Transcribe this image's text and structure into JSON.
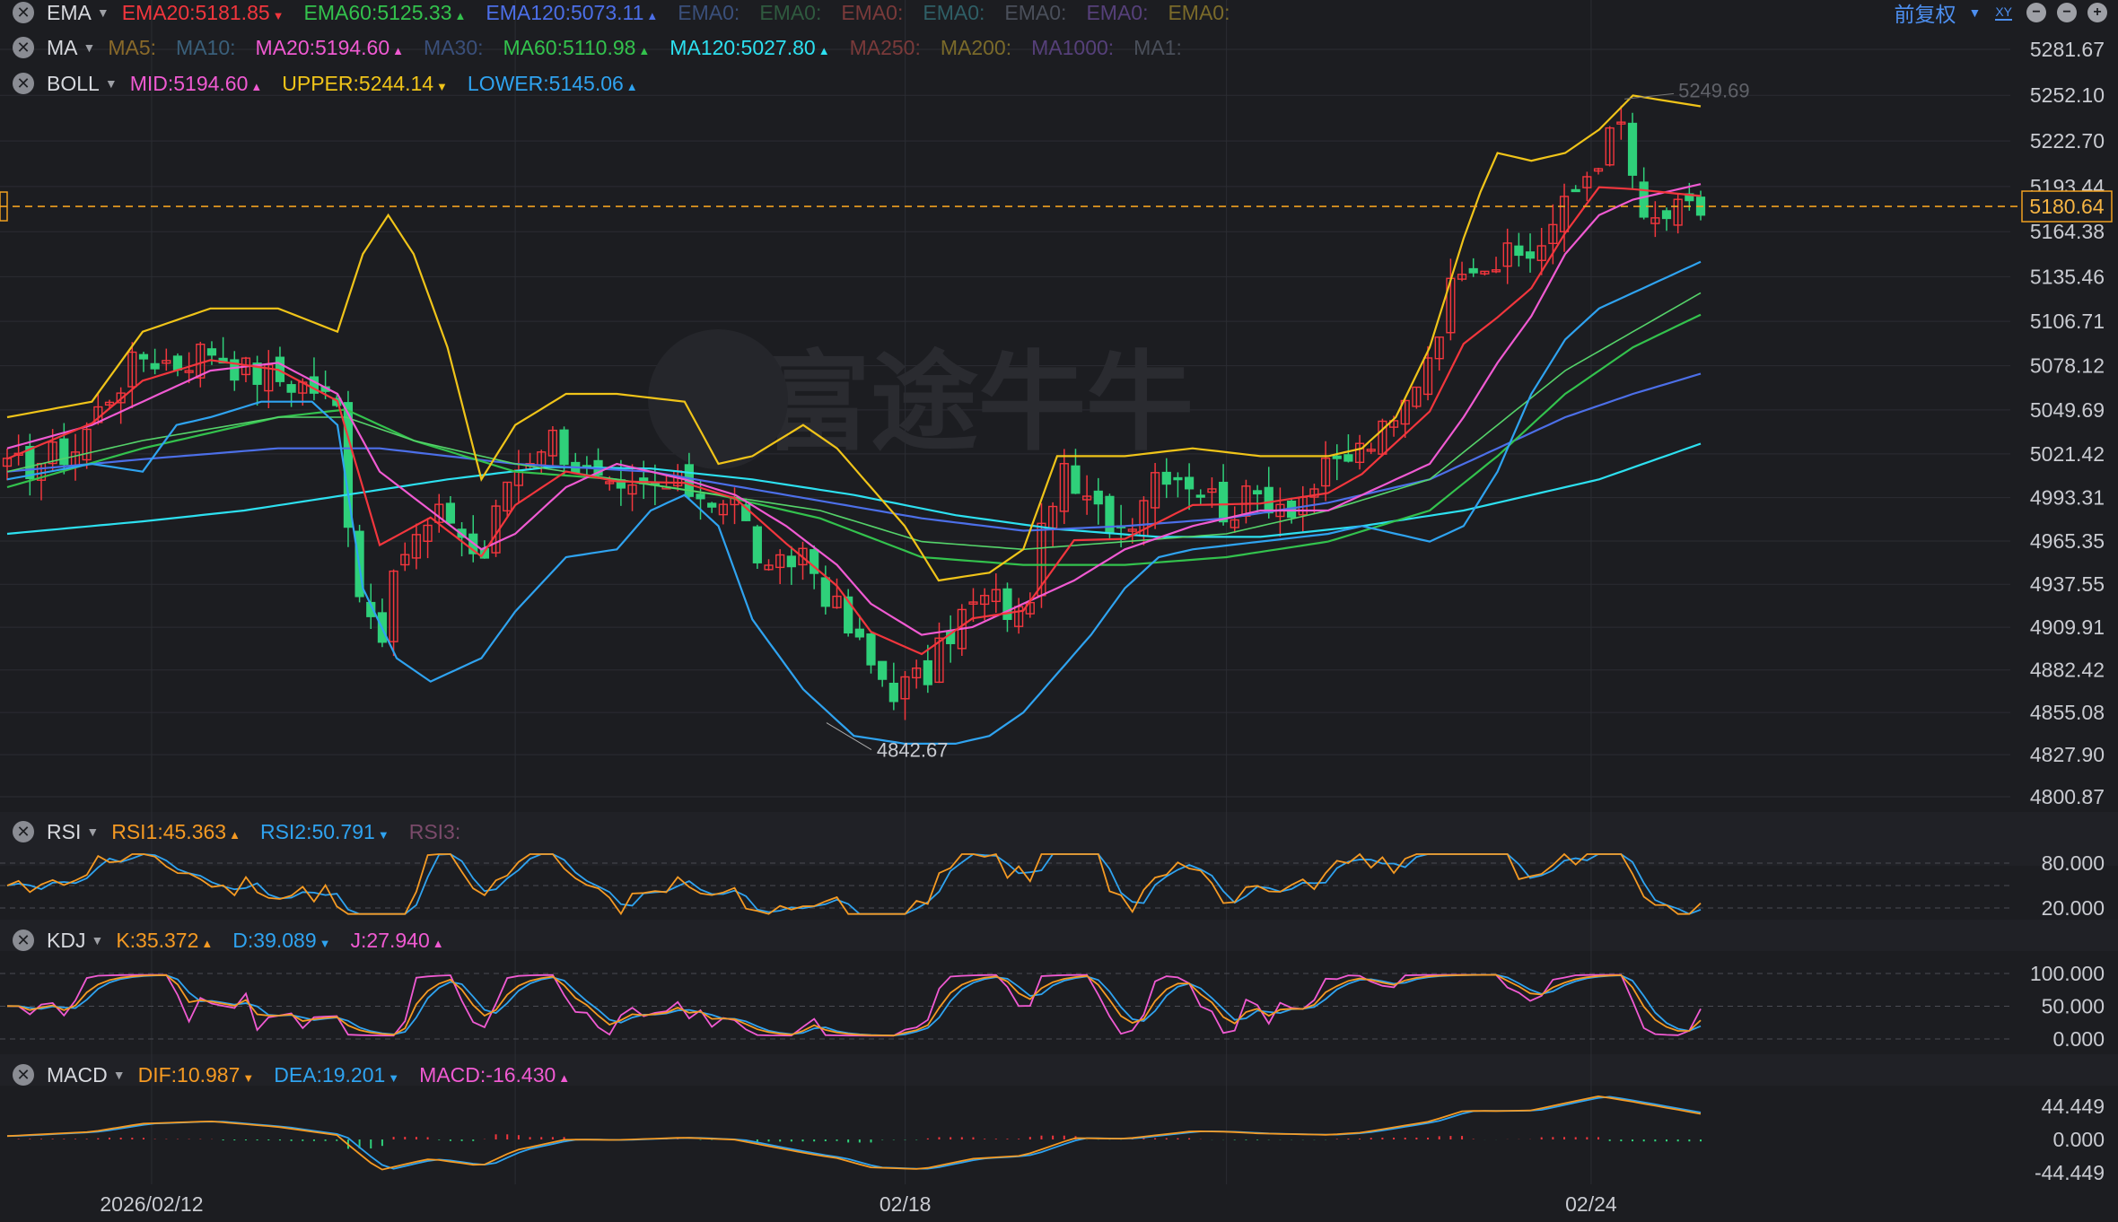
{
  "toolbar": {
    "adjust_label": "前复权",
    "xy_label": "XY"
  },
  "watermark": "富途牛牛",
  "indicators": {
    "ema": {
      "name": "EMA",
      "items": [
        {
          "text": "EMA20:5181.85",
          "color": "#f2363d",
          "arrow": "▼"
        },
        {
          "text": "EMA60:5125.33",
          "color": "#33c24d",
          "arrow": "▲"
        },
        {
          "text": "EMA120:5073.11",
          "color": "#4c6fe8",
          "arrow": "▲"
        },
        {
          "text": "EMA0:",
          "color": "#3a4f7a",
          "arrow": ""
        },
        {
          "text": "EMA0:",
          "color": "#2f5a3f",
          "arrow": ""
        },
        {
          "text": "EMA0:",
          "color": "#7a3a3a",
          "arrow": ""
        },
        {
          "text": "EMA0:",
          "color": "#2f5f66",
          "arrow": ""
        },
        {
          "text": "EMA0:",
          "color": "#4a4f5a",
          "arrow": ""
        },
        {
          "text": "EMA0:",
          "color": "#56407a",
          "arrow": ""
        },
        {
          "text": "EMA0:",
          "color": "#7a6a2a",
          "arrow": ""
        }
      ]
    },
    "ma": {
      "name": "MA",
      "items": [
        {
          "text": "MA5:",
          "color": "#8a6a2a",
          "arrow": ""
        },
        {
          "text": "MA10:",
          "color": "#3a5f7a",
          "arrow": ""
        },
        {
          "text": "MA20:5194.60",
          "color": "#f05ad2",
          "arrow": "▲"
        },
        {
          "text": "MA30:",
          "color": "#3a4f7a",
          "arrow": ""
        },
        {
          "text": "MA60:5110.98",
          "color": "#33c24d",
          "arrow": "▲"
        },
        {
          "text": "MA120:5027.80",
          "color": "#2de0f0",
          "arrow": "▲"
        },
        {
          "text": "MA250:",
          "color": "#7a3a3a",
          "arrow": ""
        },
        {
          "text": "MA200:",
          "color": "#7a6a2a",
          "arrow": ""
        },
        {
          "text": "MA1000:",
          "color": "#56407a",
          "arrow": ""
        },
        {
          "text": "MA1:",
          "color": "#4a4f5a",
          "arrow": ""
        }
      ]
    },
    "boll": {
      "name": "BOLL",
      "items": [
        {
          "text": "MID:5194.60",
          "color": "#f05ad2",
          "arrow": "▲"
        },
        {
          "text": "UPPER:5244.14",
          "color": "#f0c419",
          "arrow": "▼"
        },
        {
          "text": "LOWER:5145.06",
          "color": "#2fa3f0",
          "arrow": "▲"
        }
      ]
    },
    "rsi": {
      "name": "RSI",
      "items": [
        {
          "text": "RSI1:45.363",
          "color": "#f59a23",
          "arrow": "▲"
        },
        {
          "text": "RSI2:50.791",
          "color": "#2fa3f0",
          "arrow": "▼"
        },
        {
          "text": "RSI3:",
          "color": "#7a4a6a",
          "arrow": ""
        }
      ]
    },
    "kdj": {
      "name": "KDJ",
      "items": [
        {
          "text": "K:35.372",
          "color": "#f59a23",
          "arrow": "▲"
        },
        {
          "text": "D:39.089",
          "color": "#2fa3f0",
          "arrow": "▼"
        },
        {
          "text": "J:27.940",
          "color": "#f05ad2",
          "arrow": "▲"
        }
      ]
    },
    "macd": {
      "name": "MACD",
      "items": [
        {
          "text": "DIF:10.987",
          "color": "#f59a23",
          "arrow": "▼"
        },
        {
          "text": "DEA:19.201",
          "color": "#2fa3f0",
          "arrow": "▼"
        },
        {
          "text": "MACD:-16.430",
          "color": "#f05ad2",
          "arrow": "▲"
        }
      ]
    }
  },
  "colors": {
    "up": "#f2363d",
    "down": "#2fd07a",
    "background": "#1c1d21",
    "grid": "#2b2d33",
    "price_line": "#f0a020"
  },
  "chart_data": {
    "type": "candlestick",
    "price_axis_ticks": [
      "5281.67",
      "5252.10",
      "5222.70",
      "5193.44",
      "5164.38",
      "5135.46",
      "5106.71",
      "5078.12",
      "5049.69",
      "5021.42",
      "4993.31",
      "4965.35",
      "4937.55",
      "4909.91",
      "4882.42",
      "4855.08",
      "4827.90",
      "4800.87"
    ],
    "price_ylim": [
      4800.87,
      5281.67
    ],
    "x_labels": [
      {
        "label": "2026/02/12",
        "pos": 0.08
      },
      {
        "label": "02/18",
        "pos": 0.525
      },
      {
        "label": "02/24",
        "pos": 0.93
      }
    ],
    "current_price": "5180.64",
    "high_label": "5249.69",
    "low_label": "4842.67",
    "candles": [],
    "rsi_axis": [
      "80.000",
      "20.000"
    ],
    "kdj_axis": [
      "100.000",
      "50.000",
      "0.000"
    ],
    "macd_axis": [
      "44.449",
      "0.000",
      "-44.449"
    ],
    "anchors": {
      "close": [
        [
          0,
          5010
        ],
        [
          0.04,
          5025
        ],
        [
          0.06,
          5060
        ],
        [
          0.08,
          5085
        ],
        [
          0.1,
          5080
        ],
        [
          0.12,
          5090
        ],
        [
          0.14,
          5075
        ],
        [
          0.16,
          5070
        ],
        [
          0.18,
          5065
        ],
        [
          0.195,
          5050
        ],
        [
          0.205,
          4945
        ],
        [
          0.22,
          4905
        ],
        [
          0.235,
          4960
        ],
        [
          0.26,
          4985
        ],
        [
          0.28,
          4950
        ],
        [
          0.295,
          5005
        ],
        [
          0.32,
          5035
        ],
        [
          0.34,
          5010
        ],
        [
          0.36,
          4990
        ],
        [
          0.38,
          5000
        ],
        [
          0.4,
          5000
        ],
        [
          0.43,
          4990
        ],
        [
          0.45,
          4940
        ],
        [
          0.47,
          4960
        ],
        [
          0.49,
          4920
        ],
        [
          0.51,
          4885
        ],
        [
          0.525,
          4870
        ],
        [
          0.545,
          4880
        ],
        [
          0.56,
          4915
        ],
        [
          0.58,
          4930
        ],
        [
          0.6,
          4915
        ],
        [
          0.62,
          5010
        ],
        [
          0.64,
          4985
        ],
        [
          0.66,
          4975
        ],
        [
          0.68,
          5015
        ],
        [
          0.7,
          5005
        ],
        [
          0.72,
          4985
        ],
        [
          0.74,
          4995
        ],
        [
          0.76,
          4990
        ],
        [
          0.78,
          5010
        ],
        [
          0.8,
          5025
        ],
        [
          0.82,
          5040
        ],
        [
          0.84,
          5090
        ],
        [
          0.86,
          5150
        ],
        [
          0.88,
          5145
        ],
        [
          0.9,
          5150
        ],
        [
          0.92,
          5180
        ],
        [
          0.94,
          5215
        ],
        [
          0.955,
          5235
        ],
        [
          0.965,
          5165
        ],
        [
          0.98,
          5175
        ],
        [
          1.0,
          5178
        ]
      ],
      "upper": [
        [
          0,
          5045
        ],
        [
          0.05,
          5055
        ],
        [
          0.08,
          5100
        ],
        [
          0.12,
          5115
        ],
        [
          0.16,
          5115
        ],
        [
          0.195,
          5100
        ],
        [
          0.21,
          5150
        ],
        [
          0.225,
          5175
        ],
        [
          0.24,
          5150
        ],
        [
          0.26,
          5090
        ],
        [
          0.28,
          5005
        ],
        [
          0.3,
          5040
        ],
        [
          0.33,
          5060
        ],
        [
          0.36,
          5060
        ],
        [
          0.4,
          5055
        ],
        [
          0.42,
          5015
        ],
        [
          0.44,
          5020
        ],
        [
          0.47,
          5040
        ],
        [
          0.49,
          5025
        ],
        [
          0.51,
          5000
        ],
        [
          0.53,
          4975
        ],
        [
          0.55,
          4940
        ],
        [
          0.58,
          4945
        ],
        [
          0.6,
          4960
        ],
        [
          0.62,
          5020
        ],
        [
          0.66,
          5020
        ],
        [
          0.7,
          5025
        ],
        [
          0.74,
          5020
        ],
        [
          0.78,
          5020
        ],
        [
          0.8,
          5025
        ],
        [
          0.82,
          5045
        ],
        [
          0.84,
          5090
        ],
        [
          0.86,
          5160
        ],
        [
          0.87,
          5190
        ],
        [
          0.88,
          5215
        ],
        [
          0.9,
          5210
        ],
        [
          0.92,
          5215
        ],
        [
          0.94,
          5230
        ],
        [
          0.96,
          5252
        ],
        [
          1.0,
          5245
        ]
      ],
      "mid": [
        [
          0,
          5025
        ],
        [
          0.05,
          5040
        ],
        [
          0.08,
          5055
        ],
        [
          0.12,
          5075
        ],
        [
          0.16,
          5080
        ],
        [
          0.195,
          5060
        ],
        [
          0.22,
          5010
        ],
        [
          0.25,
          4985
        ],
        [
          0.28,
          4960
        ],
        [
          0.3,
          4970
        ],
        [
          0.33,
          5000
        ],
        [
          0.36,
          5015
        ],
        [
          0.4,
          5005
        ],
        [
          0.43,
          4995
        ],
        [
          0.46,
          4975
        ],
        [
          0.49,
          4950
        ],
        [
          0.51,
          4925
        ],
        [
          0.54,
          4905
        ],
        [
          0.57,
          4910
        ],
        [
          0.6,
          4925
        ],
        [
          0.63,
          4940
        ],
        [
          0.66,
          4960
        ],
        [
          0.7,
          4975
        ],
        [
          0.74,
          4985
        ],
        [
          0.78,
          4985
        ],
        [
          0.8,
          4995
        ],
        [
          0.84,
          5015
        ],
        [
          0.86,
          5045
        ],
        [
          0.88,
          5080
        ],
        [
          0.9,
          5110
        ],
        [
          0.92,
          5150
        ],
        [
          0.94,
          5175
        ],
        [
          0.96,
          5185
        ],
        [
          1.0,
          5195
        ]
      ],
      "lower": [
        [
          0,
          5005
        ],
        [
          0.05,
          5015
        ],
        [
          0.08,
          5010
        ],
        [
          0.1,
          5040
        ],
        [
          0.12,
          5045
        ],
        [
          0.15,
          5055
        ],
        [
          0.18,
          5055
        ],
        [
          0.195,
          5040
        ],
        [
          0.21,
          4935
        ],
        [
          0.23,
          4890
        ],
        [
          0.25,
          4875
        ],
        [
          0.28,
          4890
        ],
        [
          0.3,
          4920
        ],
        [
          0.33,
          4955
        ],
        [
          0.36,
          4960
        ],
        [
          0.38,
          4985
        ],
        [
          0.4,
          4995
        ],
        [
          0.42,
          4975
        ],
        [
          0.44,
          4915
        ],
        [
          0.47,
          4870
        ],
        [
          0.5,
          4840
        ],
        [
          0.53,
          4835
        ],
        [
          0.56,
          4835
        ],
        [
          0.58,
          4840
        ],
        [
          0.6,
          4855
        ],
        [
          0.62,
          4880
        ],
        [
          0.64,
          4905
        ],
        [
          0.66,
          4935
        ],
        [
          0.68,
          4955
        ],
        [
          0.7,
          4960
        ],
        [
          0.74,
          4965
        ],
        [
          0.78,
          4970
        ],
        [
          0.8,
          4975
        ],
        [
          0.84,
          4965
        ],
        [
          0.86,
          4975
        ],
        [
          0.88,
          5010
        ],
        [
          0.9,
          5060
        ],
        [
          0.92,
          5095
        ],
        [
          0.94,
          5115
        ],
        [
          0.96,
          5125
        ],
        [
          1.0,
          5145
        ]
      ],
      "ma60": [
        [
          0,
          5000
        ],
        [
          0.08,
          5025
        ],
        [
          0.16,
          5045
        ],
        [
          0.2,
          5050
        ],
        [
          0.24,
          5030
        ],
        [
          0.3,
          5010
        ],
        [
          0.36,
          5005
        ],
        [
          0.42,
          4995
        ],
        [
          0.48,
          4980
        ],
        [
          0.54,
          4955
        ],
        [
          0.6,
          4950
        ],
        [
          0.66,
          4950
        ],
        [
          0.72,
          4955
        ],
        [
          0.78,
          4965
        ],
        [
          0.84,
          4985
        ],
        [
          0.88,
          5020
        ],
        [
          0.92,
          5060
        ],
        [
          0.96,
          5090
        ],
        [
          1.0,
          5111
        ]
      ],
      "ema60": [
        [
          0,
          5010
        ],
        [
          0.08,
          5030
        ],
        [
          0.16,
          5045
        ],
        [
          0.2,
          5045
        ],
        [
          0.24,
          5030
        ],
        [
          0.3,
          5015
        ],
        [
          0.36,
          5005
        ],
        [
          0.42,
          4995
        ],
        [
          0.48,
          4985
        ],
        [
          0.54,
          4965
        ],
        [
          0.6,
          4960
        ],
        [
          0.66,
          4965
        ],
        [
          0.72,
          4970
        ],
        [
          0.78,
          4985
        ],
        [
          0.84,
          5005
        ],
        [
          0.88,
          5040
        ],
        [
          0.92,
          5075
        ],
        [
          0.96,
          5100
        ],
        [
          1.0,
          5125
        ]
      ],
      "ema120": [
        [
          0,
          5010
        ],
        [
          0.08,
          5018
        ],
        [
          0.16,
          5025
        ],
        [
          0.22,
          5025
        ],
        [
          0.3,
          5015
        ],
        [
          0.38,
          5010
        ],
        [
          0.46,
          4995
        ],
        [
          0.54,
          4980
        ],
        [
          0.6,
          4972
        ],
        [
          0.66,
          4975
        ],
        [
          0.72,
          4980
        ],
        [
          0.78,
          4990
        ],
        [
          0.84,
          5005
        ],
        [
          0.88,
          5025
        ],
        [
          0.92,
          5045
        ],
        [
          0.96,
          5060
        ],
        [
          1.0,
          5073
        ]
      ],
      "ma120": [
        [
          0,
          4970
        ],
        [
          0.08,
          4978
        ],
        [
          0.14,
          4985
        ],
        [
          0.2,
          4995
        ],
        [
          0.26,
          5005
        ],
        [
          0.32,
          5013
        ],
        [
          0.38,
          5012
        ],
        [
          0.44,
          5005
        ],
        [
          0.5,
          4995
        ],
        [
          0.56,
          4982
        ],
        [
          0.62,
          4973
        ],
        [
          0.68,
          4968
        ],
        [
          0.74,
          4968
        ],
        [
          0.8,
          4975
        ],
        [
          0.86,
          4985
        ],
        [
          0.9,
          4995
        ],
        [
          0.94,
          5005
        ],
        [
          1.0,
          5028
        ]
      ]
    }
  }
}
